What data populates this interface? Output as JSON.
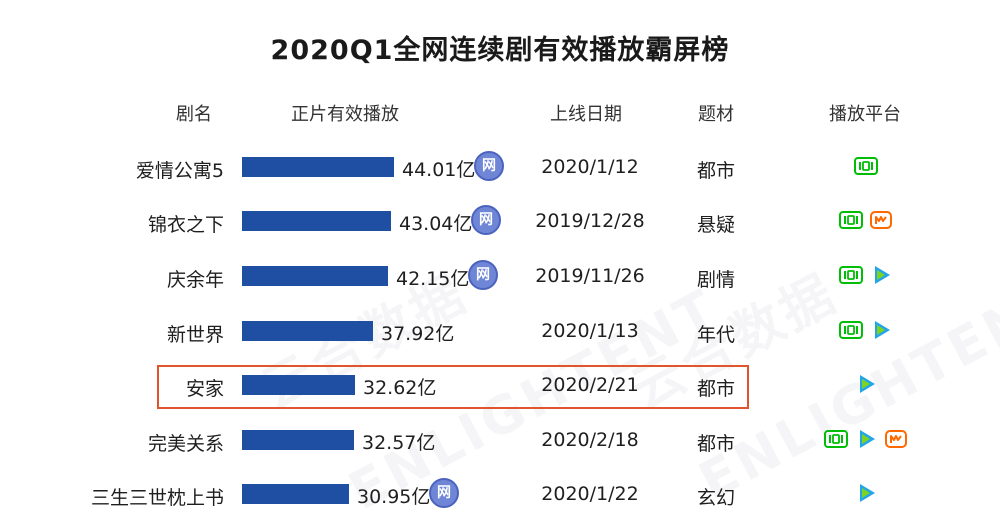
{
  "chart_data": {
    "type": "bar",
    "title": "2020Q1全网连续剧有效播放霸屏榜",
    "columns": {
      "name": "剧名",
      "plays": "正片有效播放",
      "date": "上线日期",
      "genre": "题材",
      "platform": "播放平台"
    },
    "unit": "亿",
    "categories": [
      "爱情公寓5",
      "锦衣之下",
      "庆余年",
      "新世界",
      "安家",
      "完美关系",
      "三生三世枕上书"
    ],
    "values": [
      44.01,
      43.04,
      42.15,
      37.92,
      32.62,
      32.57,
      30.95
    ],
    "rows": [
      {
        "name": "爱情公寓5",
        "value": 44.01,
        "value_label": "44.01亿",
        "wang": true,
        "date": "2020/1/12",
        "genre": "都市",
        "platforms": [
          "iqiyi"
        ]
      },
      {
        "name": "锦衣之下",
        "value": 43.04,
        "value_label": "43.04亿",
        "wang": true,
        "date": "2019/12/28",
        "genre": "悬疑",
        "platforms": [
          "iqiyi",
          "mango"
        ]
      },
      {
        "name": "庆余年",
        "value": 42.15,
        "value_label": "42.15亿",
        "wang": true,
        "date": "2019/11/26",
        "genre": "剧情",
        "platforms": [
          "iqiyi",
          "tencent"
        ]
      },
      {
        "name": "新世界",
        "value": 37.92,
        "value_label": "37.92亿",
        "wang": false,
        "date": "2020/1/13",
        "genre": "年代",
        "platforms": [
          "iqiyi",
          "tencent"
        ]
      },
      {
        "name": "安家",
        "value": 32.62,
        "value_label": "32.62亿",
        "wang": false,
        "date": "2020/2/21",
        "genre": "都市",
        "platforms": [
          "tencent"
        ],
        "highlighted": true
      },
      {
        "name": "完美关系",
        "value": 32.57,
        "value_label": "32.57亿",
        "wang": false,
        "date": "2020/2/18",
        "genre": "都市",
        "platforms": [
          "iqiyi",
          "tencent",
          "mango"
        ]
      },
      {
        "name": "三生三世枕上书",
        "value": 30.95,
        "value_label": "30.95亿",
        "wang": true,
        "date": "2020/1/22",
        "genre": "玄幻",
        "platforms": [
          "tencent"
        ]
      }
    ],
    "badge_text": "网",
    "colors": {
      "bar": "#1e4fa3",
      "highlight_border": "#e0552c",
      "iqiyi": "#00be06",
      "tencent": "#22a6e8",
      "mango": "#ff6a00"
    },
    "watermark": [
      "云合数据",
      "ENLIGHTENT"
    ]
  }
}
